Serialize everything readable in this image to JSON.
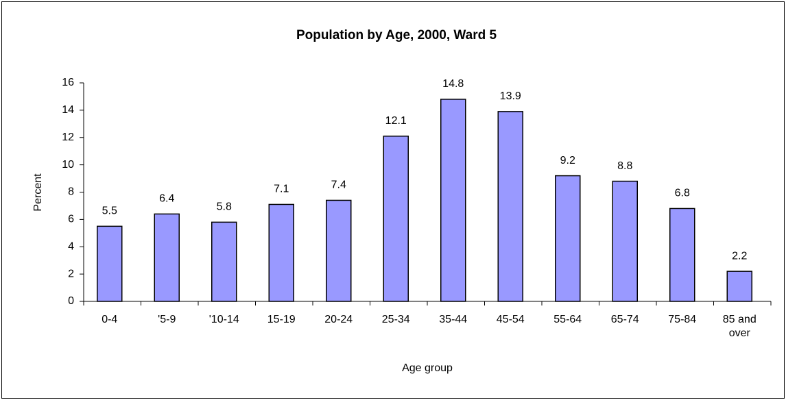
{
  "chart_data": {
    "type": "bar",
    "title": "Population by Age, 2000, Ward 5",
    "categories": [
      "0-4",
      "'5-9",
      "'10-14",
      "15-19",
      "20-24",
      "25-34",
      "35-44",
      "45-54",
      "55-64",
      "65-74",
      "75-84",
      "85 and over"
    ],
    "values": [
      5.5,
      6.4,
      5.8,
      7.1,
      7.4,
      12.1,
      14.8,
      13.9,
      9.2,
      8.8,
      6.8,
      2.2
    ],
    "color": "#9999ff",
    "xlabel": "Age group",
    "ylabel": "Percent",
    "ylim": [
      0,
      16
    ],
    "yticks": [
      0,
      2,
      4,
      6,
      8,
      10,
      12,
      14,
      16
    ],
    "grid": false
  }
}
